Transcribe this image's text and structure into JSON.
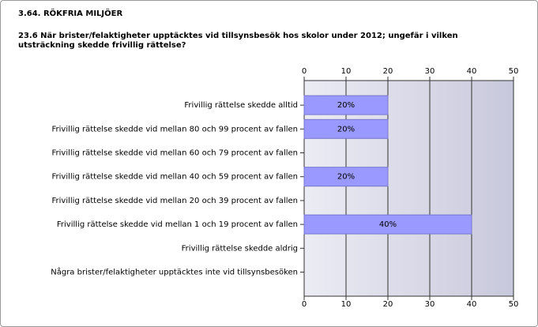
{
  "chart_data": {
    "type": "hbar",
    "title": "3.64. RÖKFRIA MILJÖER",
    "subtitle": "23.6 När brister/felaktigheter upptäcktes vid tillsynsbesök hos skolor under 2012; ungefär i vilken utsträckning skedde frivillig rättelse?",
    "categories": [
      "Frivillig rättelse skedde alltid",
      "Frivillig rättelse skedde vid mellan 80 och 99 procent av fallen",
      "Frivillig rättelse skedde vid mellan 60 och 79 procent av fallen",
      "Frivillig rättelse skedde vid mellan 40 och 59 procent av fallen",
      "Frivillig rättelse skedde vid mellan 20 och 39 procent av fallen",
      "Frivillig rättelse skedde vid mellan 1 och 19 procent av fallen",
      "Frivillig rättelse skedde aldrig",
      "Några brister/felaktigheter upptäcktes inte vid tillsynsbesöken"
    ],
    "values": [
      20,
      20,
      0,
      20,
      0,
      40,
      0,
      0
    ],
    "value_labels": [
      "20%",
      "20%",
      null,
      "20%",
      null,
      "40%",
      null,
      null
    ],
    "color": "#9999ff",
    "xlim": [
      0,
      50
    ],
    "xticks": [
      0,
      10,
      20,
      30,
      40,
      50
    ],
    "grid": true
  }
}
